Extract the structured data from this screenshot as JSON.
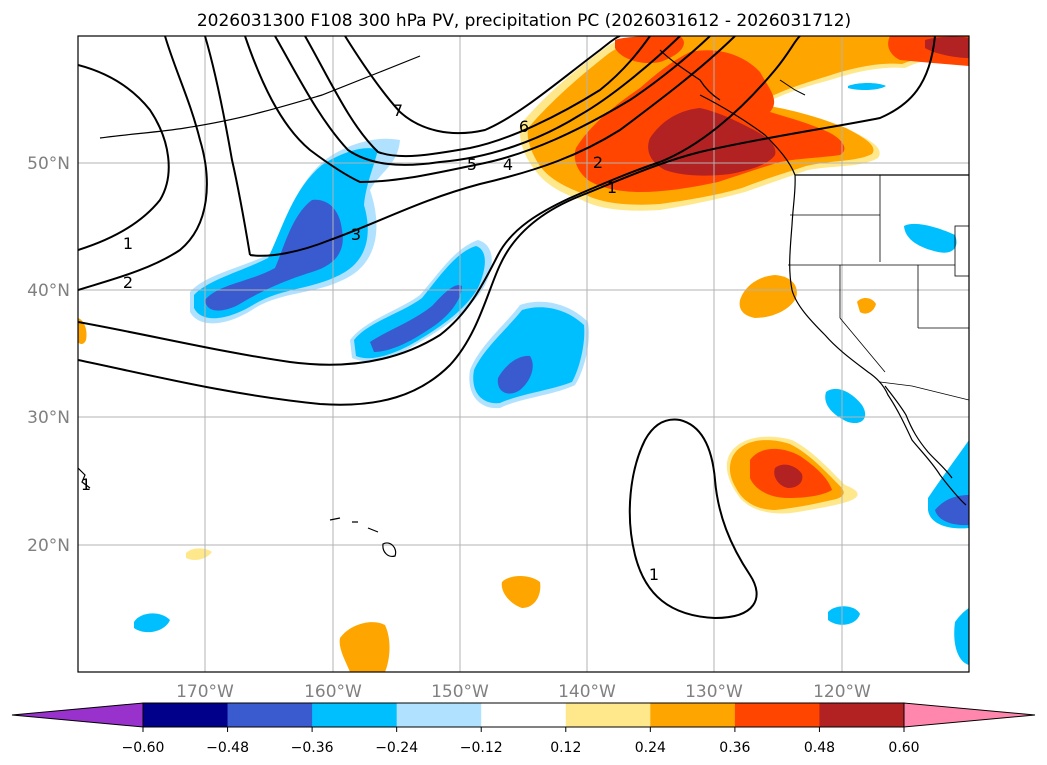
{
  "title": "2026031300 F108 300 hPa PV, precipitation PC (2026031612 - 2026031712)",
  "map": {
    "lon_range": [
      -180,
      -110
    ],
    "lat_range": [
      10,
      60
    ],
    "lat_labels": [
      "50°N",
      "40°N",
      "30°N",
      "20°N"
    ],
    "lon_labels": [
      "170°W",
      "160°W",
      "150°W",
      "140°W",
      "130°W",
      "120°W"
    ],
    "pv_contour_labels": [
      "1",
      "2",
      "3",
      "4",
      "5",
      "6",
      "7",
      "1",
      "2",
      "1",
      "1"
    ]
  },
  "colorbar": {
    "ticks": [
      "−0.60",
      "−0.48",
      "−0.36",
      "−0.24",
      "−0.12",
      "0.12",
      "0.24",
      "0.36",
      "0.48",
      "0.60"
    ],
    "colors": [
      "#9932cc",
      "#00008b",
      "#3a5bd0",
      "#00bfff",
      "#b0e2ff",
      "#ffffff",
      "#ffe88c",
      "#ffa500",
      "#ff4500",
      "#b22222",
      "#ff86ad"
    ]
  }
}
